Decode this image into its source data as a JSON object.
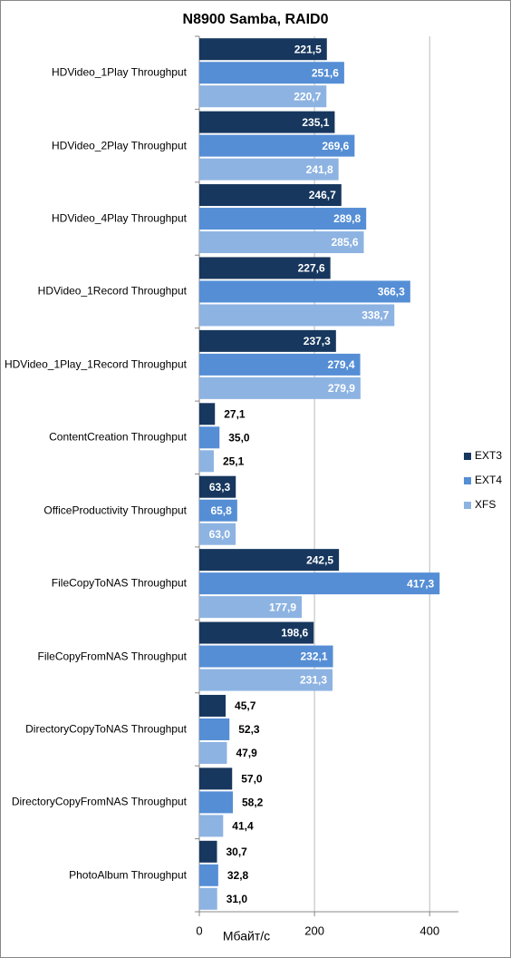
{
  "chart_data": {
    "type": "hbar",
    "title": "N8900 Samba, RAID0",
    "x_label": "Мбайт/с",
    "categories": [
      "HDVideo_1Play Throughput",
      "HDVideo_2Play Throughput",
      "HDVideo_4Play Throughput",
      "HDVideo_1Record Throughput",
      "HDVideo_1Play_1Record Throughput",
      "ContentCreation Throughput",
      "OfficeProductivity Throughput",
      "FileCopyToNAS Throughput",
      "FileCopyFromNAS Throughput",
      "DirectoryCopyToNAS Throughput",
      "DirectoryCopyFromNAS Throughput",
      "PhotoAlbum Throughput"
    ],
    "series": [
      {
        "name": "EXT3",
        "color": "#17375e",
        "values": [
          221.5,
          235.1,
          246.7,
          227.6,
          237.3,
          27.1,
          63.3,
          242.5,
          198.6,
          45.7,
          57.0,
          30.7
        ],
        "value_labels": [
          "221,5",
          "235,1",
          "246,7",
          "227,6",
          "237,3",
          "27,1",
          "63,3",
          "242,5",
          "198,6",
          "45,7",
          "57,0",
          "30,7"
        ]
      },
      {
        "name": "EXT4",
        "color": "#558ed5",
        "values": [
          251.6,
          269.6,
          289.8,
          366.3,
          279.4,
          35.0,
          65.8,
          417.3,
          232.1,
          52.3,
          58.2,
          32.8
        ],
        "value_labels": [
          "251,6",
          "269,6",
          "289,8",
          "366,3",
          "279,4",
          "35,0",
          "65,8",
          "417,3",
          "232,1",
          "52,3",
          "58,2",
          "32,8"
        ]
      },
      {
        "name": "XFS",
        "color": "#8db3e2",
        "values": [
          220.7,
          241.8,
          285.6,
          338.7,
          279.9,
          25.1,
          63.0,
          177.9,
          231.3,
          47.9,
          41.4,
          31.0
        ],
        "value_labels": [
          "220,7",
          "241,8",
          "285,6",
          "338,7",
          "279,9",
          "25,1",
          "63,0",
          "177,9",
          "231,3",
          "47,9",
          "41,4",
          "31,0"
        ]
      }
    ],
    "xlim": [
      0,
      450
    ],
    "xticks": [
      0,
      200,
      400
    ],
    "grid": true,
    "legend": "right"
  }
}
